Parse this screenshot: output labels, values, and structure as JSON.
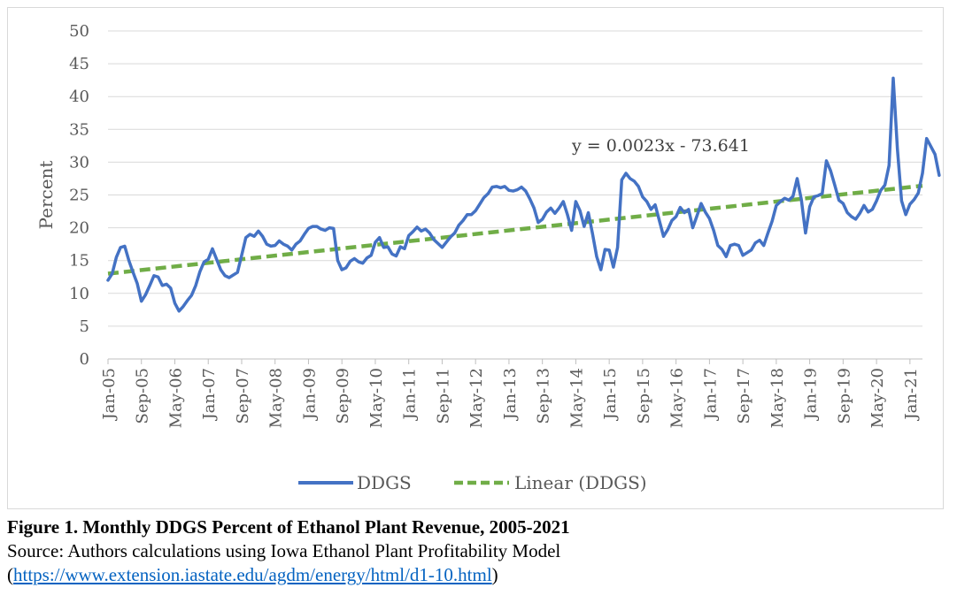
{
  "chart_data": {
    "type": "line",
    "ylabel": "Percent",
    "xlabel": "",
    "ylim": [
      0,
      50
    ],
    "yticks": [
      "0",
      "5",
      "10",
      "15",
      "20",
      "25",
      "30",
      "35",
      "40",
      "45",
      "50"
    ],
    "grid": true,
    "legend_position": "bottom",
    "x_start": "Jan-05",
    "x_end": "Apr-21",
    "tick_labels": [
      "Jan-05",
      "Sep-05",
      "May-06",
      "Jan-07",
      "Sep-07",
      "May-08",
      "Jan-09",
      "Sep-09",
      "May-10",
      "Jan-11",
      "Sep-11",
      "May-12",
      "Jan-13",
      "Sep-13",
      "May-14",
      "Jan-15",
      "Sep-15",
      "May-16",
      "Jan-17",
      "Sep-17",
      "May-18",
      "Jan-19",
      "Sep-19",
      "May-20",
      "Jan-21"
    ],
    "trendline_equation": "y = 0.0023x - 73.641",
    "series": [
      {
        "name": "DDGS",
        "color": "#4472c4",
        "style": "solid",
        "values": [
          12,
          13,
          15.5,
          17,
          17.2,
          15,
          13.2,
          11.5,
          8.8,
          9.8,
          11.2,
          12.7,
          12.5,
          11.2,
          11.4,
          10.8,
          8.5,
          7.3,
          8,
          8.9,
          9.7,
          11.2,
          13.3,
          14.8,
          15.2,
          16.8,
          15.2,
          13.6,
          12.7,
          12.4,
          12.8,
          13.2,
          15.8,
          18.5,
          19,
          18.7,
          19.5,
          18.7,
          17.5,
          17.2,
          17.3,
          18,
          17.5,
          17.2,
          16.6,
          17.5,
          18,
          19,
          19.9,
          20.2,
          20.2,
          19.8,
          19.6,
          20,
          19.9,
          15,
          13.6,
          13.9,
          14.9,
          15.3,
          14.8,
          14.6,
          15.4,
          15.8,
          17.8,
          18.5,
          17,
          17.1,
          16,
          15.7,
          17.1,
          16.8,
          18.8,
          19.4,
          20.1,
          19.5,
          19.8,
          19.2,
          18.2,
          17.6,
          17,
          17.8,
          18.6,
          19.2,
          20.4,
          21.1,
          22,
          22,
          22.6,
          23.6,
          24.6,
          25.2,
          26.2,
          26.3,
          26.1,
          26.3,
          25.7,
          25.6,
          25.8,
          26.2,
          25.6,
          24.4,
          23,
          20.8,
          21.3,
          22.4,
          23,
          22.2,
          23,
          24,
          22,
          19.6,
          24,
          22.6,
          20.2,
          22.3,
          19.1,
          15.6,
          13.6,
          16.7,
          16.6,
          14,
          17,
          27.3,
          28.3,
          27.5,
          27.1,
          26.3,
          24.7,
          24,
          22.8,
          23.5,
          21.1,
          18.7,
          19.7,
          21.1,
          21.7,
          23.1,
          22.3,
          22.8,
          20,
          21.8,
          23.7,
          22.4,
          21.4,
          19.6,
          17.3,
          16.7,
          15.6,
          17.3,
          17.5,
          17.3,
          15.8,
          16.2,
          16.6,
          17.7,
          18.1,
          17.3,
          19.2,
          21,
          23.4,
          24,
          24.5,
          24.2,
          24.8,
          27.5,
          24.3,
          19.2,
          23.2,
          24.7,
          24.9,
          25.2,
          30.2,
          28.7,
          26.5,
          24.2,
          23.7,
          22.3,
          21.7,
          21.3,
          22.2,
          23.4,
          22.4,
          22.8,
          24.1,
          25.7,
          26.5,
          29.5,
          42.8,
          32,
          24.1,
          22,
          23.6,
          24.3,
          25.3,
          28.3,
          33.6,
          32.4,
          31.2,
          28
        ]
      },
      {
        "name": "Linear (DDGS)",
        "color": "#70ad47",
        "style": "dashed",
        "values_start_end": [
          13,
          26.4
        ]
      }
    ]
  },
  "caption": {
    "title": "Figure 1. Monthly DDGS Percent of Ethanol Plant Revenue, 2005-2021",
    "source": "Source: Authors calculations using Iowa Ethanol Plant Profitability Model",
    "link_open": "(",
    "link_text": "https://www.extension.iastate.edu/agdm/energy/html/d1-10.html",
    "link_close": ")"
  }
}
